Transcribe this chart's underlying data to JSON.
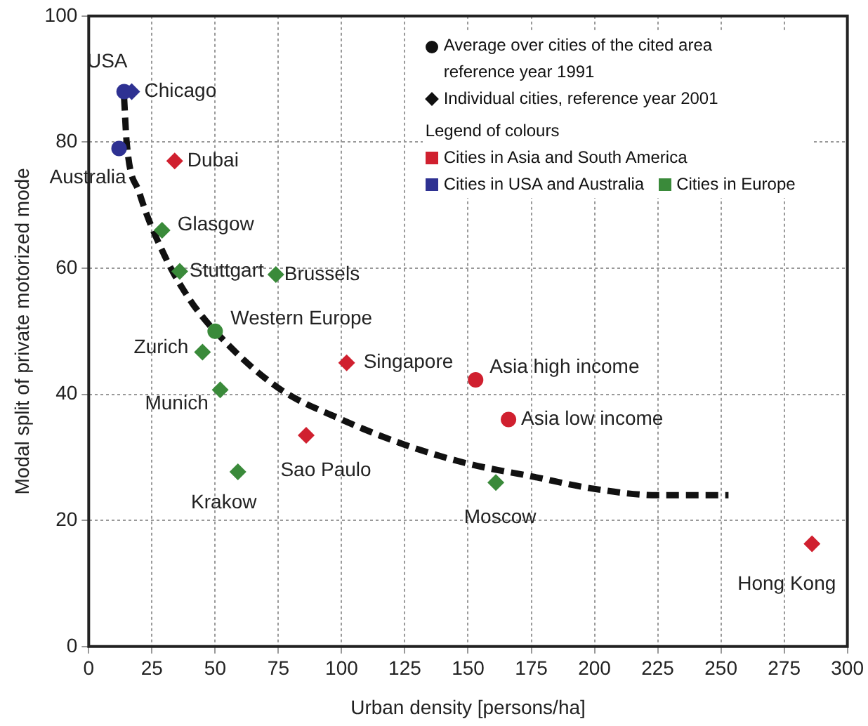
{
  "chart_data": {
    "type": "scatter",
    "xlabel": "Urban density [persons/ha]",
    "ylabel": "Modal split of private motorized mode",
    "legend_title": "Legend of colours",
    "xlim": [
      0,
      300
    ],
    "xticks": [
      0,
      25,
      50,
      75,
      100,
      125,
      150,
      175,
      200,
      225,
      250,
      275,
      300
    ],
    "ylim": [
      0,
      100
    ],
    "yticks": [
      0,
      20,
      40,
      60,
      80,
      100
    ],
    "grid": true,
    "legend": "top right",
    "series": [
      {
        "name": "Cities in Asia and South America",
        "color": "#d0202f",
        "marker": "diamond",
        "x": [
          34,
          86,
          102,
          286
        ],
        "values": [
          77,
          33.5,
          45,
          16.3
        ]
      },
      {
        "name": "Cities in USA and Australia",
        "color": "#2e3192",
        "marker": "diamond",
        "x": [
          17
        ],
        "values": [
          88
        ]
      },
      {
        "color": "#2e3192",
        "marker": "circle",
        "x": [
          14,
          12
        ],
        "values": [
          88,
          79
        ]
      },
      {
        "color": "#d0202f",
        "marker": "circle",
        "x": [
          153,
          166
        ],
        "values": [
          42.3,
          36
        ]
      },
      {
        "name": "Cities in Europe",
        "color": "#3a8a3a",
        "marker": "diamond",
        "x": [
          29,
          36,
          74,
          45,
          52,
          59,
          161
        ],
        "values": [
          66,
          59.5,
          59,
          46.7,
          40.7,
          27.7,
          26
        ]
      },
      {
        "color": "#3a8a3a",
        "marker": "circle",
        "x": [
          50
        ],
        "values": [
          50
        ]
      },
      {
        "type": "line",
        "color": "#111111",
        "marker": "none",
        "line_style": "dashed",
        "x": [
          14,
          15,
          20,
          30,
          40,
          50,
          75,
          100,
          125,
          150,
          175,
          200,
          225,
          253
        ],
        "values": [
          87,
          80,
          72,
          62,
          55,
          50,
          41,
          36,
          32,
          29,
          27,
          25,
          24,
          24
        ]
      }
    ],
    "annotations": [
      "Average over cities of the cited area reference year 1991",
      "Individual cities, reference year 2001",
      {
        "text": "USA",
        "x": 14,
        "y": 88
      },
      {
        "text": "Chicago",
        "x": 17,
        "y": 88
      },
      {
        "text": "Australia",
        "x": 12,
        "y": 79
      },
      {
        "text": "Dubai",
        "x": 34,
        "y": 77
      },
      {
        "text": "Glasgow",
        "x": 29,
        "y": 66
      },
      {
        "text": "Stuttgart",
        "x": 36,
        "y": 59.5
      },
      {
        "text": "Brussels",
        "x": 74,
        "y": 59
      },
      {
        "text": "Western Europe",
        "x": 50,
        "y": 50
      },
      {
        "text": "Zurich",
        "x": 45,
        "y": 46.7
      },
      {
        "text": "Munich",
        "x": 52,
        "y": 40.7
      },
      {
        "text": "Krakow",
        "x": 59,
        "y": 27.7
      },
      {
        "text": "Sao Paulo",
        "x": 86,
        "y": 33.5
      },
      {
        "text": "Singapore",
        "x": 102,
        "y": 45
      },
      {
        "text": "Asia high income",
        "x": 153,
        "y": 42.3
      },
      {
        "text": "Asia low income",
        "x": 166,
        "y": 36
      },
      {
        "text": "Moscow",
        "x": 161,
        "y": 26
      },
      {
        "text": "Hong Kong",
        "x": 286,
        "y": 16.3
      }
    ]
  }
}
